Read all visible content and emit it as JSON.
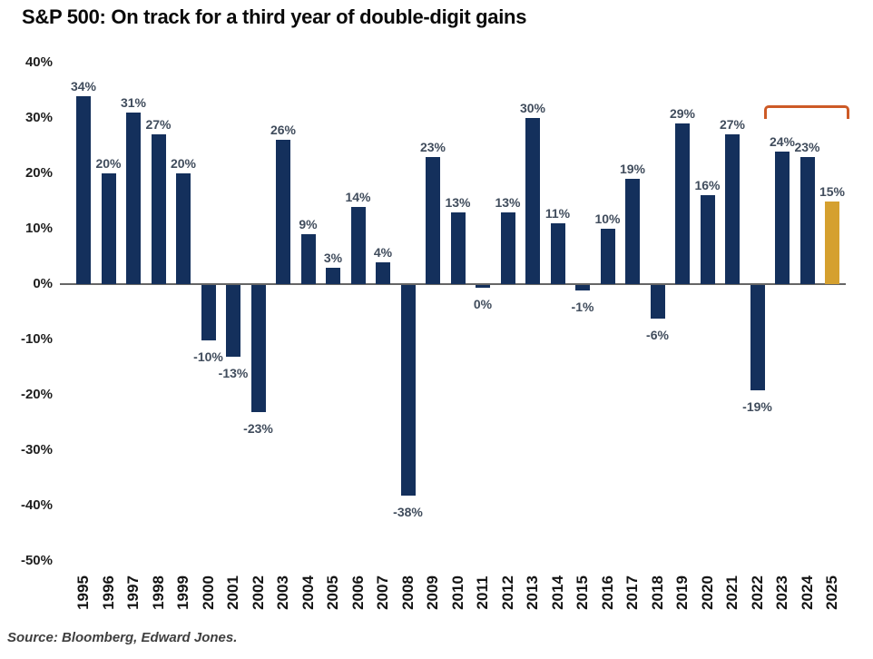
{
  "title": "S&P 500: On track for a third year of double-digit gains",
  "source": "Source: Bloomberg, Edward Jones.",
  "colors": {
    "bar": "#14305c",
    "highlight_bar": "#d5a02f",
    "bracket": "#cd5a26",
    "axis_line": "#666666",
    "value_label": "#404c5c",
    "tick_label": "#1f1f1f"
  },
  "chart_data": {
    "type": "bar",
    "title": "S&P 500: On track for a third year of double-digit gains",
    "xlabel": "",
    "ylabel": "",
    "categories": [
      "1995",
      "1996",
      "1997",
      "1998",
      "1999",
      "2000",
      "2001",
      "2002",
      "2003",
      "2004",
      "2005",
      "2006",
      "2007",
      "2008",
      "2009",
      "2010",
      "2011",
      "2012",
      "2013",
      "2014",
      "2015",
      "2016",
      "2017",
      "2018",
      "2019",
      "2020",
      "2021",
      "2022",
      "2023",
      "2024",
      "2025"
    ],
    "values": [
      34,
      20,
      31,
      27,
      20,
      -10,
      -13,
      -23,
      26,
      9,
      3,
      14,
      4,
      -38,
      23,
      13,
      0,
      13,
      30,
      11,
      -1,
      10,
      19,
      -6,
      29,
      16,
      27,
      -19,
      24,
      23,
      15
    ],
    "labels": [
      "34%",
      "20%",
      "31%",
      "27%",
      "20%",
      "-10%",
      "-13%",
      "-23%",
      "26%",
      "9%",
      "3%",
      "14%",
      "4%",
      "-38%",
      "23%",
      "13%",
      "0%",
      "13%",
      "30%",
      "11%",
      "-1%",
      "10%",
      "19%",
      "-6%",
      "29%",
      "16%",
      "27%",
      "-19%",
      "24%",
      "23%",
      "15%"
    ],
    "y_ticks": [
      40,
      30,
      20,
      10,
      0,
      -10,
      -20,
      -30,
      -40,
      -50
    ],
    "y_tick_labels": [
      "40%",
      "30%",
      "20%",
      "10%",
      "0%",
      "-10%",
      "-20%",
      "-30%",
      "-40%",
      "-50%"
    ],
    "ylim": [
      -50,
      40
    ],
    "grid": false,
    "legend": false,
    "highlight_category": "2025",
    "bracket_categories": [
      "2023",
      "2024",
      "2025"
    ]
  }
}
